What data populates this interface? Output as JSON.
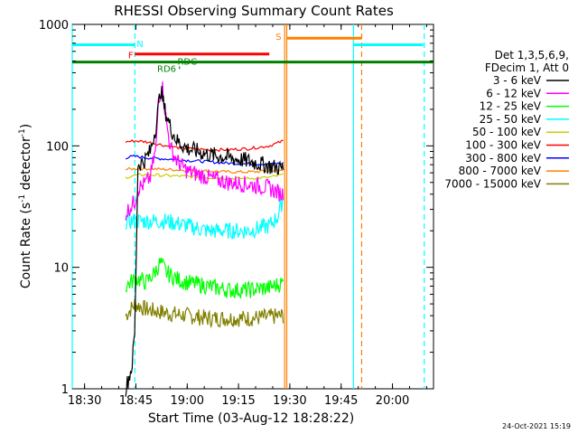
{
  "chart_data": {
    "type": "line",
    "title": "RHESSI Observing Summary Count Rates",
    "xlabel": "Start Time (03-Aug-12 18:28:22)",
    "ylabel": "Count Rate (s",
    "ylabel_sup1": "-1",
    "ylabel_mid": " detector",
    "ylabel_sup2": "-1",
    "ylabel_end": ")",
    "y_scale": "log",
    "xlim": [
      18.44,
      20.2
    ],
    "ylim": [
      1,
      1000
    ],
    "x_ticks": [
      {
        "t": 18.5,
        "label": "18:30"
      },
      {
        "t": 18.75,
        "label": "18:45"
      },
      {
        "t": 19.0,
        "label": "19:00"
      },
      {
        "t": 19.25,
        "label": "19:15"
      },
      {
        "t": 19.5,
        "label": "19:30"
      },
      {
        "t": 19.75,
        "label": "19:45"
      },
      {
        "t": 20.0,
        "label": "20:00"
      }
    ],
    "y_ticks": [
      {
        "v": 1,
        "label": "1"
      },
      {
        "v": 10,
        "label": "10"
      },
      {
        "v": 100,
        "label": "100"
      },
      {
        "v": 1000,
        "label": "1000"
      }
    ],
    "legend_header": [
      "Det 1,3,5,6,9,",
      "FDecim 1, Att 0"
    ],
    "series": [
      {
        "name": "3 - 6 keV",
        "color": "#000000",
        "style": "jagged",
        "x": [
          18.7,
          18.73,
          18.745,
          18.76,
          18.79,
          18.82,
          18.85,
          18.87,
          18.89,
          18.92,
          18.95,
          19.0,
          19.05,
          19.1,
          19.2,
          19.3,
          19.4,
          19.47
        ],
        "y": [
          1,
          1.5,
          3,
          70,
          75,
          90,
          150,
          300,
          200,
          140,
          110,
          95,
          90,
          85,
          80,
          75,
          68,
          65
        ]
      },
      {
        "name": "6 - 12 keV",
        "color": "#ff00ff",
        "style": "jagged",
        "x": [
          18.7,
          18.745,
          18.76,
          18.79,
          18.82,
          18.85,
          18.86,
          18.88,
          18.9,
          18.92,
          18.95,
          19.0,
          19.1,
          19.2,
          19.3,
          19.4,
          19.46,
          19.47
        ],
        "y": [
          28,
          35,
          45,
          48,
          55,
          100,
          250,
          300,
          150,
          95,
          75,
          62,
          55,
          50,
          48,
          45,
          40,
          42
        ]
      },
      {
        "name": "12 - 25 keV",
        "color": "#00ff00",
        "style": "jagged",
        "x": [
          18.7,
          18.745,
          18.76,
          18.8,
          18.84,
          18.87,
          18.9,
          18.95,
          19.0,
          19.1,
          19.2,
          19.3,
          19.4,
          19.47
        ],
        "y": [
          7,
          8,
          8,
          7.5,
          9,
          11,
          9,
          8,
          7.5,
          7,
          6.5,
          6.5,
          6.8,
          7.5
        ]
      },
      {
        "name": "25 - 50 keV",
        "color": "#00ffff",
        "style": "jagged",
        "x": [
          18.7,
          18.745,
          18.8,
          18.9,
          19.0,
          19.1,
          19.2,
          19.3,
          19.4,
          19.44,
          19.47
        ],
        "y": [
          24,
          24,
          24,
          24,
          22,
          20,
          20,
          20,
          22,
          26,
          38
        ]
      },
      {
        "name": "50 - 100 keV",
        "color": "#cccc00",
        "style": "smooth",
        "x": [
          18.7,
          18.745,
          18.8,
          18.9,
          19.0,
          19.1,
          19.2,
          19.3,
          19.4,
          19.47
        ],
        "y": [
          55,
          57,
          58,
          57,
          56,
          55,
          54,
          54,
          55,
          58
        ]
      },
      {
        "name": "100 - 300 keV",
        "color": "#ff0000",
        "style": "smooth",
        "x": [
          18.7,
          18.745,
          18.8,
          18.85,
          18.9,
          18.95,
          19.0,
          19.1,
          19.2,
          19.3,
          19.4,
          19.47
        ],
        "y": [
          108,
          110,
          108,
          104,
          100,
          97,
          95,
          93,
          93,
          95,
          100,
          110
        ]
      },
      {
        "name": "300 - 800 keV",
        "color": "#0000ff",
        "style": "smooth",
        "x": [
          18.7,
          18.745,
          18.8,
          18.9,
          19.0,
          19.1,
          19.2,
          19.3,
          19.4,
          19.47
        ],
        "y": [
          80,
          82,
          80,
          78,
          76,
          74,
          72,
          71,
          71,
          72
        ]
      },
      {
        "name": "800 - 7000 keV",
        "color": "#ff8000",
        "style": "smooth",
        "x": [
          18.7,
          18.745,
          18.8,
          18.9,
          19.0,
          19.1,
          19.2,
          19.3,
          19.4,
          19.47
        ],
        "y": [
          64,
          65,
          65,
          64,
          63,
          62,
          61,
          61,
          62,
          63
        ]
      },
      {
        "name": "7000 - 15000 keV",
        "color": "#808000",
        "style": "jagged",
        "x": [
          18.7,
          18.745,
          18.8,
          18.9,
          19.0,
          19.1,
          19.2,
          19.3,
          19.4,
          19.47
        ],
        "y": [
          4,
          5,
          4.5,
          4.2,
          4,
          3.8,
          3.8,
          3.8,
          3.9,
          4
        ]
      }
    ],
    "vertical_lines": [
      {
        "t": 18.44,
        "color": "#00ffff",
        "style": "solid"
      },
      {
        "t": 18.745,
        "color": "#00ffff",
        "style": "dashed"
      },
      {
        "t": 19.475,
        "color": "#ff8000",
        "style": "solid"
      },
      {
        "t": 19.485,
        "color": "#ff8000",
        "style": "solid"
      },
      {
        "t": 19.81,
        "color": "#00ffff",
        "style": "solid"
      },
      {
        "t": 19.85,
        "color": "#ff8000",
        "style": "dashed"
      },
      {
        "t": 20.155,
        "color": "#00ffff",
        "style": "dashed"
      }
    ],
    "flag_bars": [
      {
        "t0": 18.44,
        "t1": 18.745,
        "y": 680,
        "color": "#00ffff"
      },
      {
        "t0": 19.81,
        "t1": 20.15,
        "y": 680,
        "color": "#00ffff"
      },
      {
        "t0": 18.745,
        "t1": 19.4,
        "y": 570,
        "color": "#ff0000"
      },
      {
        "t0": 19.485,
        "t1": 19.85,
        "y": 770,
        "color": "#ff8000"
      },
      {
        "t0": 18.44,
        "t1": 20.2,
        "y": 490,
        "color": "#008000"
      },
      {
        "t0": 18.96,
        "t1": 18.965,
        "y": 440,
        "color": "#008000"
      }
    ],
    "annotations": [
      {
        "text": "N",
        "t": 18.77,
        "y": 700,
        "color": "#00ffff"
      },
      {
        "text": "F",
        "t": 18.725,
        "y": 565,
        "color": "#ff0000"
      },
      {
        "text": "RDC",
        "t": 19.0,
        "y": 500,
        "color": "#008000"
      },
      {
        "text": "RD6",
        "t": 18.9,
        "y": 435,
        "color": "#008000"
      },
      {
        "text": "S",
        "t": 19.445,
        "y": 800,
        "color": "#ff8000"
      }
    ],
    "timestamp": "24-Oct-2021 15:19"
  }
}
